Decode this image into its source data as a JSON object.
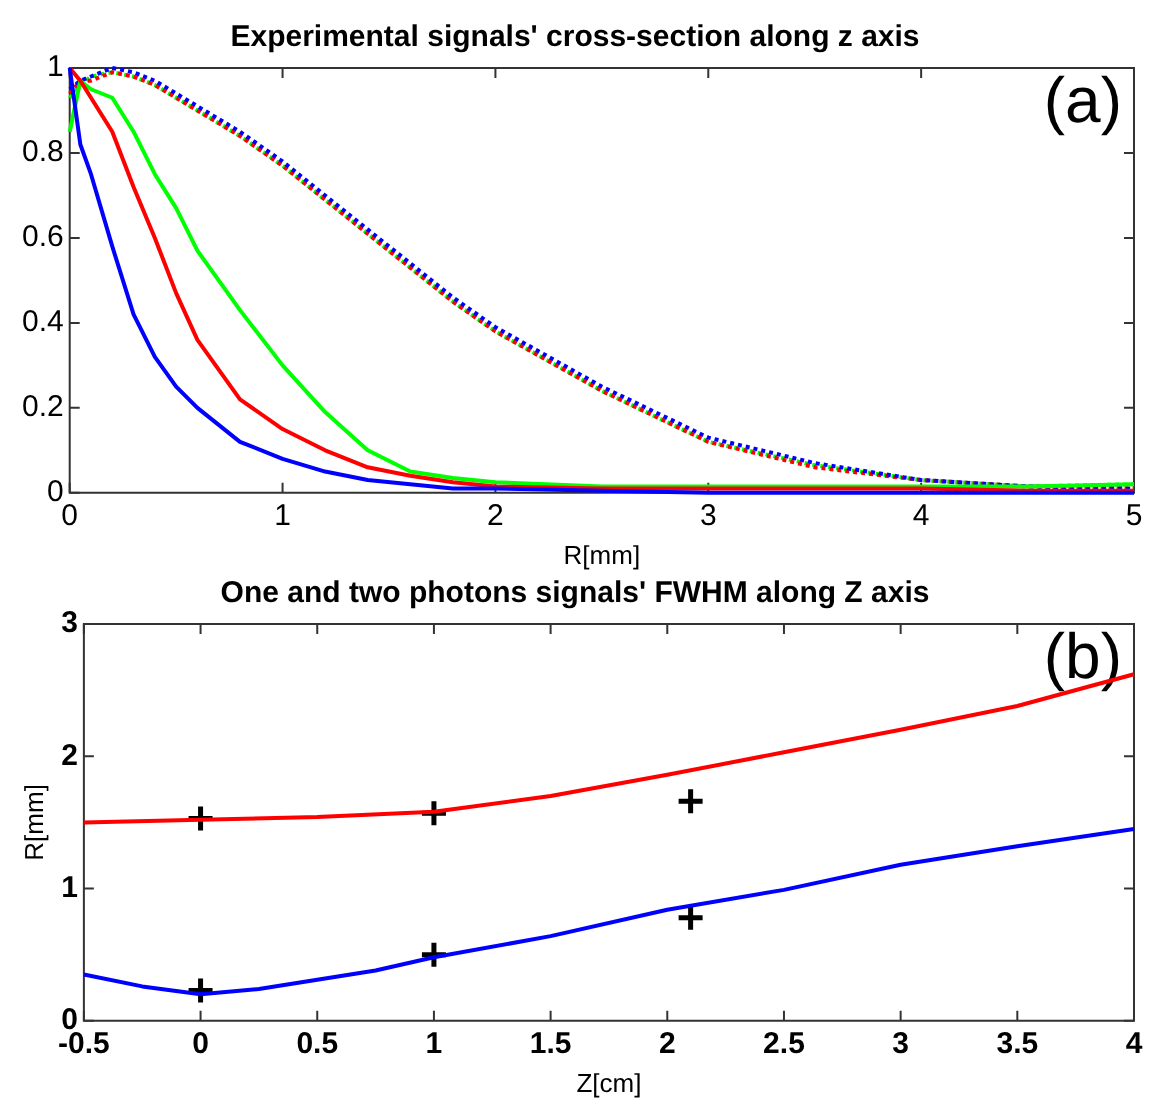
{
  "chart_data": [
    {
      "type": "line",
      "title": "Experimental signals' cross-section along z axis",
      "xlabel": "R[mm]",
      "annotations": [
        "(a)"
      ],
      "x": [
        0,
        0.05,
        0.1,
        0.2,
        0.3,
        0.4,
        0.5,
        0.6,
        0.8,
        1.0,
        1.2,
        1.4,
        1.6,
        1.8,
        2.0,
        2.5,
        3,
        3.5,
        4,
        4.5,
        5
      ],
      "xlim": [
        0,
        5
      ],
      "xticks": [
        0,
        1,
        2,
        3,
        4,
        5
      ],
      "ylim": [
        0,
        1
      ],
      "yticks": [
        0,
        0.2,
        0.4,
        0.6,
        0.8,
        1
      ],
      "grid": false,
      "legend": false,
      "marker": "none",
      "series": [
        {
          "color": "#0000ff",
          "line_style": "solid",
          "values": [
            1.0,
            0.82,
            0.75,
            0.58,
            0.42,
            0.32,
            0.25,
            0.2,
            0.12,
            0.08,
            0.05,
            0.03,
            0.02,
            0.01,
            0.01,
            0.005,
            0,
            0,
            0,
            0,
            0
          ]
        },
        {
          "color": "#ff0000",
          "line_style": "solid",
          "values": [
            1.0,
            0.97,
            0.93,
            0.85,
            0.72,
            0.6,
            0.47,
            0.36,
            0.22,
            0.15,
            0.1,
            0.06,
            0.04,
            0.025,
            0.015,
            0.01,
            0.01,
            0.01,
            0.01,
            0.005,
            0.005
          ]
        },
        {
          "color": "#00ff00",
          "line_style": "solid",
          "values": [
            0.85,
            0.97,
            0.95,
            0.93,
            0.85,
            0.75,
            0.67,
            0.57,
            0.43,
            0.3,
            0.19,
            0.1,
            0.05,
            0.035,
            0.025,
            0.015,
            0.015,
            0.015,
            0.015,
            0.015,
            0.02
          ]
        },
        {
          "color": "#0000ff",
          "line_style": "dotted",
          "values": [
            0.95,
            0.97,
            0.98,
            1.0,
            0.99,
            0.97,
            0.94,
            0.91,
            0.85,
            0.78,
            0.7,
            0.62,
            0.54,
            0.46,
            0.39,
            0.25,
            0.13,
            0.07,
            0.03,
            0.015,
            0.01
          ]
        },
        {
          "color": "#ff0000",
          "line_style": "dotted",
          "values": [
            0.94,
            0.97,
            0.97,
            0.99,
            0.98,
            0.96,
            0.93,
            0.9,
            0.84,
            0.77,
            0.69,
            0.61,
            0.53,
            0.45,
            0.38,
            0.24,
            0.12,
            0.06,
            0.03,
            0.015,
            0.01
          ]
        },
        {
          "color": "#00ff00",
          "line_style": "dotted",
          "values": [
            0.93,
            0.96,
            0.98,
            0.99,
            0.98,
            0.96,
            0.93,
            0.9,
            0.84,
            0.77,
            0.69,
            0.61,
            0.53,
            0.45,
            0.38,
            0.24,
            0.12,
            0.065,
            0.03,
            0.015,
            0.02
          ]
        }
      ]
    },
    {
      "type": "line",
      "title": "One and two photons signals' FWHM along Z axis",
      "xlabel": "Z[cm]",
      "ylabel": "R[mm]",
      "annotations": [
        "(b)"
      ],
      "xlim": [
        -0.5,
        4
      ],
      "xticks": [
        -0.5,
        0,
        0.5,
        1,
        1.5,
        2,
        2.5,
        3,
        3.5,
        4
      ],
      "ylim": [
        0,
        3
      ],
      "yticks": [
        0,
        1,
        2,
        3
      ],
      "grid": false,
      "legend": false,
      "marker": "none",
      "series": [
        {
          "color": "#ff0000",
          "line_style": "solid",
          "x": [
            -0.5,
            0,
            0.5,
            1,
            1.5,
            2,
            2.5,
            3,
            3.5,
            4
          ],
          "values": [
            1.5,
            1.52,
            1.54,
            1.58,
            1.7,
            1.86,
            2.03,
            2.2,
            2.38,
            2.62
          ]
        },
        {
          "color": "#0000ff",
          "line_style": "solid",
          "x": [
            -0.5,
            -0.25,
            0,
            0.25,
            0.5,
            0.75,
            1,
            1.5,
            2,
            2.5,
            3,
            3.5,
            4
          ],
          "values": [
            0.35,
            0.26,
            0.2,
            0.24,
            0.31,
            0.38,
            0.48,
            0.64,
            0.84,
            0.99,
            1.18,
            1.32,
            1.45
          ]
        },
        {
          "type": "scatter",
          "color": "#000000",
          "marker": "cross",
          "x": [
            0,
            1,
            2.1,
            0,
            1,
            2.1
          ],
          "values": [
            1.53,
            1.57,
            1.66,
            0.23,
            0.5,
            0.78
          ]
        }
      ]
    }
  ]
}
